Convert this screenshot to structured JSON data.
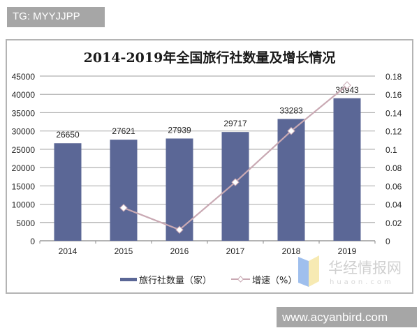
{
  "watermarks": {
    "top_tag": "TG: MYYJJPP",
    "bottom_tag": "www.acyanbird.com",
    "logo_cn": "华经情报网",
    "logo_en": "huaon.com"
  },
  "colors": {
    "bar": "#5b6796",
    "line": "#c9a9b3",
    "marker": "#ffffff",
    "grid": "#b0b0b0",
    "tag_bg": "#a6a6a6"
  },
  "chart_data": {
    "type": "bar",
    "title": "2014-2019年全国旅行社数量及增长情况",
    "categories": [
      "2014",
      "2015",
      "2016",
      "2017",
      "2018",
      "2019"
    ],
    "series": [
      {
        "name": "旅行社数量（家）",
        "type": "bar",
        "axis": "left",
        "values": [
          26650,
          27621,
          27939,
          29717,
          33283,
          38943
        ]
      },
      {
        "name": "增速（%）",
        "type": "line",
        "axis": "right",
        "values": [
          null,
          0.036,
          0.012,
          0.064,
          0.12,
          0.17
        ]
      }
    ],
    "bar_labels": [
      "26650",
      "27621",
      "27939",
      "29717",
      "33283",
      "38943"
    ],
    "left_axis": {
      "ticks": [
        "0",
        "5000",
        "10000",
        "15000",
        "20000",
        "25000",
        "30000",
        "35000",
        "40000",
        "45000"
      ],
      "range": [
        0,
        45000
      ]
    },
    "right_axis": {
      "ticks": [
        "0",
        "0.02",
        "0.04",
        "0.06",
        "0.08",
        "0.1",
        "0.12",
        "0.14",
        "0.16",
        "0.18"
      ],
      "range": [
        0,
        0.18
      ]
    },
    "grid": true,
    "legend_position": "bottom",
    "legend": [
      "旅行社数量（家）",
      "增速（%）"
    ],
    "xlabel": "",
    "ylabel": ""
  }
}
